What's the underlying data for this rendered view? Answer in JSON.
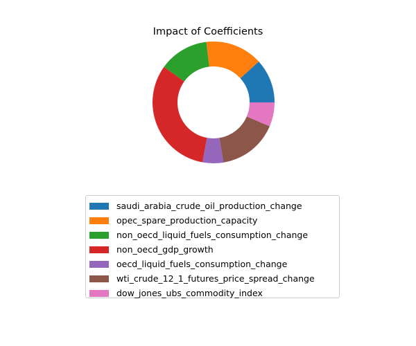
{
  "chart_data": {
    "type": "pie",
    "variant": "donut",
    "title": "Impact of Coefficients",
    "legend_position": "bottom-center",
    "start_angle_deg": 0,
    "direction": "counterclockwise",
    "slices": [
      {
        "label": "saudi_arabia_crude_oil_production_change",
        "value": 11.7,
        "color": "#1f77b4"
      },
      {
        "label": "opec_spare_production_capacity",
        "value": 15.2,
        "color": "#ff7f0e"
      },
      {
        "label": "non_oecd_liquid_fuels_consumption_change",
        "value": 13.2,
        "color": "#2ca02c"
      },
      {
        "label": "non_oecd_gdp_growth",
        "value": 32.0,
        "color": "#d62728"
      },
      {
        "label": "oecd_liquid_fuels_consumption_change",
        "value": 5.5,
        "color": "#9467bd"
      },
      {
        "label": "wti_crude_12_1_futures_price_spread_change",
        "value": 16.0,
        "color": "#8c564b"
      },
      {
        "label": "dow_jones_ubs_commodity_index",
        "value": 6.4,
        "color": "#e377c2"
      }
    ]
  }
}
